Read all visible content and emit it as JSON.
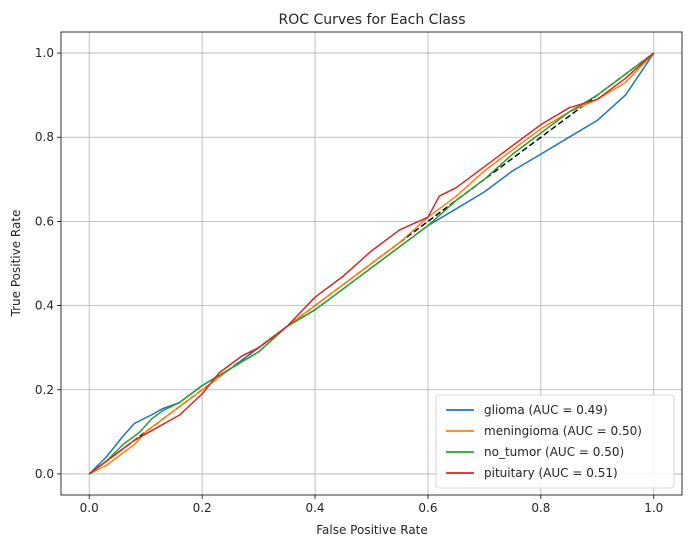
{
  "chart_data": {
    "type": "line",
    "title": "ROC Curves for Each Class",
    "xlabel": "False Positive Rate",
    "ylabel": "True Positive Rate",
    "xlim": [
      -0.05,
      1.05
    ],
    "ylim": [
      -0.05,
      1.05
    ],
    "xticks": [
      0.0,
      0.2,
      0.4,
      0.6,
      0.8,
      1.0
    ],
    "yticks": [
      0.0,
      0.2,
      0.4,
      0.6,
      0.8,
      1.0
    ],
    "xtick_labels": [
      "0.0",
      "0.2",
      "0.4",
      "0.6",
      "0.8",
      "1.0"
    ],
    "ytick_labels": [
      "0.0",
      "0.2",
      "0.4",
      "0.6",
      "0.8",
      "1.0"
    ],
    "grid": true,
    "legend_position": "lower right",
    "baseline": {
      "x": [
        0,
        1
      ],
      "y": [
        0,
        1
      ],
      "color": "#000000",
      "style": "dashed"
    },
    "series": [
      {
        "name": "glioma (AUC = 0.49)",
        "color": "#1f77b4",
        "x": [
          0.0,
          0.03,
          0.06,
          0.08,
          0.11,
          0.13,
          0.16,
          0.2,
          0.25,
          0.3,
          0.35,
          0.4,
          0.45,
          0.5,
          0.55,
          0.6,
          0.65,
          0.7,
          0.75,
          0.8,
          0.85,
          0.9,
          0.95,
          0.98,
          1.0
        ],
        "y": [
          0.0,
          0.04,
          0.09,
          0.12,
          0.14,
          0.155,
          0.17,
          0.21,
          0.25,
          0.3,
          0.35,
          0.39,
          0.44,
          0.49,
          0.54,
          0.59,
          0.63,
          0.67,
          0.72,
          0.76,
          0.8,
          0.84,
          0.9,
          0.96,
          1.0
        ]
      },
      {
        "name": "meningioma (AUC = 0.50)",
        "color": "#ff7f0e",
        "x": [
          0.0,
          0.03,
          0.06,
          0.08,
          0.1,
          0.13,
          0.16,
          0.2,
          0.25,
          0.3,
          0.35,
          0.4,
          0.45,
          0.5,
          0.55,
          0.6,
          0.65,
          0.7,
          0.75,
          0.8,
          0.85,
          0.9,
          0.95,
          1.0
        ],
        "y": [
          0.0,
          0.02,
          0.05,
          0.07,
          0.1,
          0.13,
          0.16,
          0.2,
          0.25,
          0.29,
          0.35,
          0.4,
          0.45,
          0.5,
          0.55,
          0.61,
          0.66,
          0.72,
          0.77,
          0.82,
          0.86,
          0.89,
          0.93,
          1.0
        ]
      },
      {
        "name": "no_tumor (AUC = 0.50)",
        "color": "#2ca02c",
        "x": [
          0.0,
          0.03,
          0.06,
          0.09,
          0.11,
          0.13,
          0.16,
          0.2,
          0.25,
          0.3,
          0.35,
          0.4,
          0.45,
          0.5,
          0.55,
          0.6,
          0.65,
          0.7,
          0.75,
          0.8,
          0.85,
          0.9,
          0.95,
          1.0
        ],
        "y": [
          0.0,
          0.03,
          0.07,
          0.1,
          0.13,
          0.15,
          0.17,
          0.21,
          0.25,
          0.29,
          0.35,
          0.39,
          0.44,
          0.49,
          0.54,
          0.59,
          0.65,
          0.7,
          0.76,
          0.81,
          0.86,
          0.9,
          0.95,
          1.0
        ]
      },
      {
        "name": "pituitary (AUC = 0.51)",
        "color": "#d62728",
        "x": [
          0.0,
          0.04,
          0.08,
          0.12,
          0.16,
          0.2,
          0.23,
          0.27,
          0.3,
          0.35,
          0.4,
          0.45,
          0.5,
          0.55,
          0.6,
          0.62,
          0.65,
          0.7,
          0.75,
          0.8,
          0.85,
          0.9,
          0.95,
          1.0
        ],
        "y": [
          0.0,
          0.04,
          0.08,
          0.11,
          0.14,
          0.19,
          0.24,
          0.28,
          0.3,
          0.35,
          0.42,
          0.47,
          0.53,
          0.58,
          0.61,
          0.66,
          0.68,
          0.73,
          0.78,
          0.83,
          0.87,
          0.89,
          0.94,
          1.0
        ]
      }
    ]
  }
}
